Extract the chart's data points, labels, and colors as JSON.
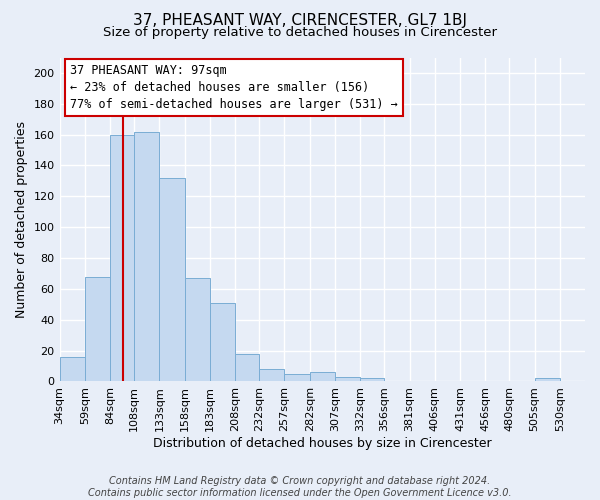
{
  "title": "37, PHEASANT WAY, CIRENCESTER, GL7 1BJ",
  "subtitle": "Size of property relative to detached houses in Cirencester",
  "xlabel": "Distribution of detached houses by size in Cirencester",
  "ylabel": "Number of detached properties",
  "footer_lines": [
    "Contains HM Land Registry data © Crown copyright and database right 2024.",
    "Contains public sector information licensed under the Open Government Licence v3.0."
  ],
  "bin_labels": [
    "34sqm",
    "59sqm",
    "84sqm",
    "108sqm",
    "133sqm",
    "158sqm",
    "183sqm",
    "208sqm",
    "232sqm",
    "257sqm",
    "282sqm",
    "307sqm",
    "332sqm",
    "356sqm",
    "381sqm",
    "406sqm",
    "431sqm",
    "456sqm",
    "480sqm",
    "505sqm",
    "530sqm"
  ],
  "bar_heights": [
    16,
    68,
    160,
    162,
    132,
    67,
    51,
    18,
    8,
    5,
    6,
    3,
    2,
    0,
    0,
    0,
    0,
    0,
    0,
    2,
    0
  ],
  "bar_color": "#c5d9f0",
  "bar_edge_color": "#7aadd4",
  "vline_x_index": 2.52,
  "vline_color": "#cc0000",
  "bin_edges_sqm": [
    34,
    59,
    84,
    108,
    133,
    158,
    183,
    208,
    232,
    257,
    282,
    307,
    332,
    356,
    381,
    406,
    431,
    456,
    480,
    505,
    530,
    555
  ],
  "property_sqm": 97,
  "annotation_title": "37 PHEASANT WAY: 97sqm",
  "annotation_line1": "← 23% of detached houses are smaller (156)",
  "annotation_line2": "77% of semi-detached houses are larger (531) →",
  "annotation_box_color": "#cc0000",
  "ylim": [
    0,
    210
  ],
  "yticks": [
    0,
    20,
    40,
    60,
    80,
    100,
    120,
    140,
    160,
    180,
    200
  ],
  "background_color": "#e8eef8",
  "plot_background": "#e8eef8",
  "grid_color": "#ffffff",
  "title_fontsize": 11,
  "subtitle_fontsize": 9.5,
  "axis_label_fontsize": 9,
  "tick_fontsize": 8,
  "footer_fontsize": 7
}
